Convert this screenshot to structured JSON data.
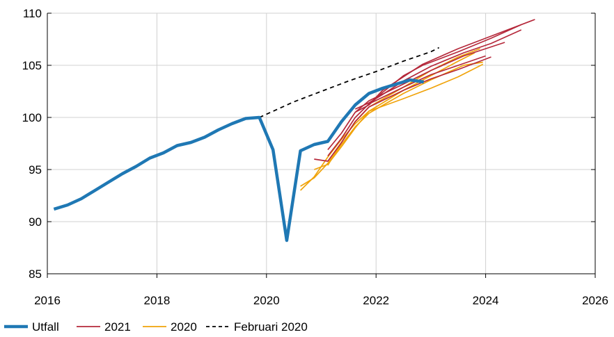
{
  "chart_data": {
    "type": "line",
    "title": "",
    "xlabel": "",
    "ylabel": "",
    "xlim": [
      2016,
      2026
    ],
    "ylim": [
      85,
      110
    ],
    "x_ticks": [
      "2016",
      "2018",
      "2020",
      "2022",
      "2024",
      "2026"
    ],
    "y_ticks": [
      "85",
      "90",
      "95",
      "100",
      "105",
      "110"
    ],
    "grid": true,
    "legend_position": "bottom",
    "legend": [
      {
        "label": "Utfall",
        "color": "#1f78b4",
        "style": "solid-thick"
      },
      {
        "label": "2021",
        "color": "#b5283a",
        "style": "solid"
      },
      {
        "label": "2020",
        "color": "#f0a30a",
        "style": "solid"
      },
      {
        "label": "Februari 2020",
        "color": "#000000",
        "style": "dashed"
      }
    ],
    "series": [
      {
        "name": "Utfall",
        "group": "utfall",
        "points": [
          [
            2016.12,
            91.2
          ],
          [
            2016.37,
            91.6
          ],
          [
            2016.62,
            92.2
          ],
          [
            2016.87,
            93.0
          ],
          [
            2017.12,
            93.8
          ],
          [
            2017.37,
            94.6
          ],
          [
            2017.62,
            95.3
          ],
          [
            2017.87,
            96.1
          ],
          [
            2018.12,
            96.6
          ],
          [
            2018.37,
            97.3
          ],
          [
            2018.62,
            97.6
          ],
          [
            2018.87,
            98.1
          ],
          [
            2019.12,
            98.8
          ],
          [
            2019.37,
            99.4
          ],
          [
            2019.62,
            99.9
          ],
          [
            2019.87,
            100.0
          ],
          [
            2020.12,
            96.9
          ],
          [
            2020.37,
            88.2
          ],
          [
            2020.62,
            96.8
          ],
          [
            2020.87,
            97.4
          ],
          [
            2021.12,
            97.7
          ],
          [
            2021.37,
            99.6
          ],
          [
            2021.62,
            101.2
          ],
          [
            2021.87,
            102.3
          ],
          [
            2022.12,
            102.8
          ],
          [
            2022.37,
            103.2
          ],
          [
            2022.62,
            103.6
          ],
          [
            2022.87,
            103.4
          ]
        ]
      },
      {
        "name": "Februari 2020",
        "group": "feb2020",
        "points": [
          [
            2019.87,
            100.0
          ],
          [
            2020.5,
            101.5
          ],
          [
            2021.0,
            102.5
          ],
          [
            2021.5,
            103.5
          ],
          [
            2022.0,
            104.4
          ],
          [
            2022.5,
            105.4
          ],
          [
            2023.0,
            106.3
          ],
          [
            2023.15,
            106.7
          ]
        ]
      },
      {
        "group": "2020",
        "points": [
          [
            2020.62,
            93.0
          ],
          [
            2020.87,
            94.3
          ],
          [
            2021.12,
            96.2
          ],
          [
            2021.37,
            97.9
          ],
          [
            2021.62,
            99.4
          ],
          [
            2021.87,
            100.6
          ],
          [
            2022.5,
            101.8
          ],
          [
            2023.0,
            102.8
          ],
          [
            2023.5,
            103.9
          ],
          [
            2023.95,
            105.1
          ]
        ]
      },
      {
        "group": "2020",
        "points": [
          [
            2020.62,
            93.4
          ],
          [
            2020.87,
            94.2
          ],
          [
            2021.12,
            95.6
          ],
          [
            2021.37,
            97.4
          ],
          [
            2021.62,
            99.1
          ],
          [
            2021.87,
            100.4
          ],
          [
            2022.5,
            102.3
          ],
          [
            2023.0,
            103.6
          ],
          [
            2023.6,
            105.0
          ],
          [
            2023.95,
            105.3
          ]
        ]
      },
      {
        "group": "2020",
        "points": [
          [
            2020.87,
            95.0
          ],
          [
            2021.12,
            95.5
          ],
          [
            2021.37,
            97.2
          ],
          [
            2021.62,
            99.0
          ],
          [
            2021.87,
            100.6
          ],
          [
            2022.5,
            102.6
          ],
          [
            2023.0,
            104.0
          ],
          [
            2023.5,
            105.4
          ],
          [
            2023.8,
            106.2
          ]
        ]
      },
      {
        "group": "2020",
        "points": [
          [
            2021.12,
            95.4
          ],
          [
            2021.37,
            97.6
          ],
          [
            2021.62,
            99.6
          ],
          [
            2021.87,
            101.0
          ],
          [
            2022.5,
            102.9
          ],
          [
            2023.0,
            104.5
          ],
          [
            2023.5,
            105.8
          ],
          [
            2023.9,
            106.6
          ]
        ]
      },
      {
        "group": "2021",
        "points": [
          [
            2020.87,
            96.0
          ],
          [
            2021.12,
            95.8
          ],
          [
            2021.37,
            97.6
          ],
          [
            2021.62,
            99.6
          ],
          [
            2021.87,
            101.0
          ],
          [
            2022.5,
            102.6
          ],
          [
            2023.0,
            103.7
          ],
          [
            2023.5,
            104.6
          ],
          [
            2024.1,
            105.8
          ]
        ]
      },
      {
        "group": "2021",
        "points": [
          [
            2021.12,
            96.3
          ],
          [
            2021.37,
            98.0
          ],
          [
            2021.62,
            100.0
          ],
          [
            2021.87,
            101.3
          ],
          [
            2022.5,
            102.9
          ],
          [
            2023.0,
            104.1
          ],
          [
            2023.5,
            105.0
          ],
          [
            2024.0,
            105.9
          ]
        ]
      },
      {
        "group": "2021",
        "points": [
          [
            2021.12,
            96.9
          ],
          [
            2021.37,
            98.5
          ],
          [
            2021.62,
            100.5
          ],
          [
            2021.87,
            101.6
          ],
          [
            2022.5,
            103.2
          ],
          [
            2023.0,
            104.5
          ],
          [
            2023.6,
            105.9
          ],
          [
            2024.35,
            107.2
          ]
        ]
      },
      {
        "group": "2021",
        "points": [
          [
            2021.62,
            100.8
          ],
          [
            2021.87,
            101.4
          ],
          [
            2022.12,
            102.2
          ],
          [
            2022.5,
            103.5
          ],
          [
            2023.0,
            104.9
          ],
          [
            2023.6,
            106.2
          ],
          [
            2024.1,
            107.1
          ],
          [
            2024.65,
            108.4
          ]
        ]
      },
      {
        "group": "2021",
        "points": [
          [
            2021.62,
            100.5
          ],
          [
            2021.87,
            101.2
          ],
          [
            2022.12,
            102.4
          ],
          [
            2022.5,
            104.0
          ],
          [
            2022.85,
            105.0
          ],
          [
            2023.5,
            106.3
          ],
          [
            2024.1,
            107.6
          ],
          [
            2024.65,
            108.9
          ]
        ]
      },
      {
        "group": "2021",
        "points": [
          [
            2021.87,
            101.2
          ],
          [
            2022.12,
            102.6
          ],
          [
            2022.5,
            103.9
          ],
          [
            2022.85,
            105.1
          ],
          [
            2023.5,
            106.6
          ],
          [
            2024.2,
            108.0
          ],
          [
            2024.9,
            109.4
          ]
        ]
      }
    ]
  }
}
